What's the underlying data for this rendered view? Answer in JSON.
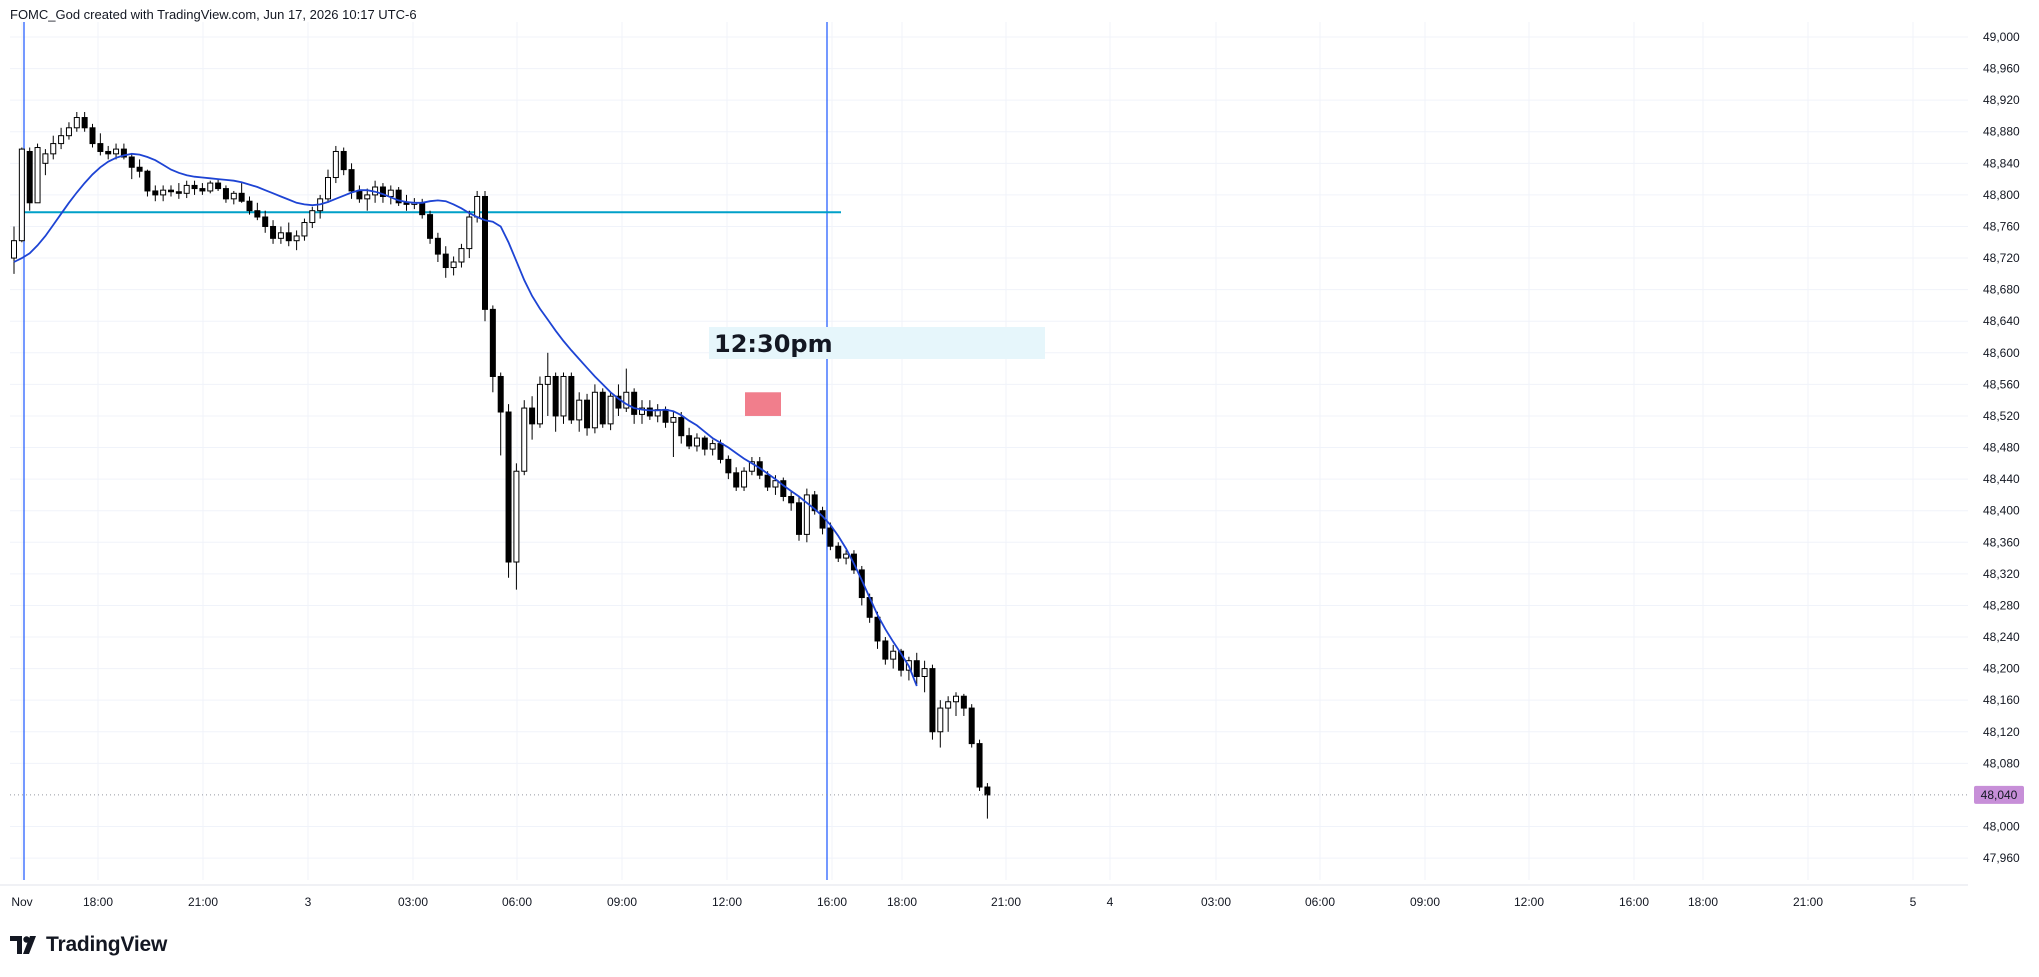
{
  "header": {
    "caption": "FOMC_God created with TradingView.com, Jun 17, 2026 10:17 UTC-6"
  },
  "brand": {
    "name": "TradingView",
    "logo_icon": "tradingview-logo-icon"
  },
  "colors": {
    "up_candle_fill": "#ffffff",
    "down_candle_fill": "#000000",
    "candle_outline": "#000000",
    "moving_average": "#1e44d4",
    "horizontal_level": "#00a0c8",
    "vertical_lines": "#2962ff",
    "annotation_box": "#e6f6fb",
    "order_block": "#f07080",
    "last_price_badge": "#c78fd8",
    "grid": "#f0f3fa"
  },
  "chart_data": {
    "type": "candlestick",
    "title": "",
    "xlabel": "",
    "ylabel": "",
    "ylim": [
      47940,
      49010
    ],
    "grid": true,
    "y_ticks": [
      {
        "value": 49000,
        "label": "49,000"
      },
      {
        "value": 48960,
        "label": "48,960"
      },
      {
        "value": 48920,
        "label": "48,920"
      },
      {
        "value": 48880,
        "label": "48,880"
      },
      {
        "value": 48840,
        "label": "48,840"
      },
      {
        "value": 48800,
        "label": "48,800"
      },
      {
        "value": 48760,
        "label": "48,760"
      },
      {
        "value": 48720,
        "label": "48,720"
      },
      {
        "value": 48680,
        "label": "48,680"
      },
      {
        "value": 48640,
        "label": "48,640"
      },
      {
        "value": 48600,
        "label": "48,600"
      },
      {
        "value": 48560,
        "label": "48,560"
      },
      {
        "value": 48520,
        "label": "48,520"
      },
      {
        "value": 48480,
        "label": "48,480"
      },
      {
        "value": 48440,
        "label": "48,440"
      },
      {
        "value": 48400,
        "label": "48,400"
      },
      {
        "value": 48360,
        "label": "48,360"
      },
      {
        "value": 48320,
        "label": "48,320"
      },
      {
        "value": 48280,
        "label": "48,280"
      },
      {
        "value": 48240,
        "label": "48,240"
      },
      {
        "value": 48200,
        "label": "48,200"
      },
      {
        "value": 48160,
        "label": "48,160"
      },
      {
        "value": 48120,
        "label": "48,120"
      },
      {
        "value": 48080,
        "label": "48,080"
      },
      {
        "value": 48000,
        "label": "48,000"
      },
      {
        "value": 47960,
        "label": "47,960"
      }
    ],
    "x_tick_labels": [
      "Nov",
      "18:00",
      "21:00",
      "3",
      "03:00",
      "06:00",
      "09:00",
      "12:00",
      "16:00",
      "18:00",
      "21:00",
      "4",
      "03:00",
      "06:00",
      "09:00",
      "12:00",
      "16:00",
      "18:00",
      "21:00",
      "5"
    ],
    "last_price": {
      "value": 48040,
      "label": "48,040"
    },
    "annotations": [
      {
        "type": "text_box",
        "text": "12:30pm"
      },
      {
        "type": "horizontal_level",
        "value": 48778
      },
      {
        "type": "vertical_line",
        "at": "Nov"
      },
      {
        "type": "vertical_line",
        "at": "16:00 (Nov 3)"
      },
      {
        "type": "order_block",
        "y_range": [
          48520,
          48550
        ]
      }
    ],
    "moving_average": [
      48715,
      48720,
      48726,
      48736,
      48748,
      48762,
      48776,
      48790,
      48803,
      48815,
      48826,
      48835,
      48842,
      48847,
      48850,
      48852,
      48851,
      48848,
      48844,
      48838,
      48832,
      48828,
      48825,
      48823,
      48822,
      48821,
      48820,
      48819,
      48818,
      48816,
      48813,
      48810,
      48806,
      48802,
      48798,
      48794,
      48790,
      48788,
      48787,
      48788,
      48791,
      48795,
      48799,
      48803,
      48806,
      48806,
      48804,
      48801,
      48797,
      48793,
      48791,
      48790,
      48790,
      48792,
      48793,
      48792,
      48788,
      48783,
      48777,
      48772,
      48768,
      48766,
      48760,
      48740,
      48716,
      48692,
      48672,
      48656,
      48642,
      48628,
      48615,
      48603,
      48592,
      48581,
      48570,
      48560,
      48550,
      48542,
      48535,
      48530,
      48528,
      48527,
      48527,
      48528,
      48526,
      48521,
      48514,
      48508,
      48500,
      48492,
      48486,
      48480,
      48473,
      48466,
      48460,
      48454,
      48447,
      48440,
      48432,
      48425,
      48418,
      48410,
      48402,
      48393,
      48382,
      48368,
      48352,
      48333,
      48312,
      48290,
      48268,
      48250,
      48234,
      48219,
      48203,
      48178
    ],
    "candles": [
      [
        48720,
        48760,
        48700,
        48742
      ],
      [
        48742,
        48860,
        48740,
        48858
      ],
      [
        48855,
        48860,
        48780,
        48790
      ],
      [
        48790,
        48865,
        48790,
        48860
      ],
      [
        48840,
        48858,
        48825,
        48852
      ],
      [
        48852,
        48875,
        48845,
        48865
      ],
      [
        48865,
        48885,
        48858,
        48875
      ],
      [
        48875,
        48892,
        48870,
        48885
      ],
      [
        48885,
        48905,
        48880,
        48898
      ],
      [
        48898,
        48905,
        48880,
        48885
      ],
      [
        48885,
        48890,
        48860,
        48865
      ],
      [
        48865,
        48878,
        48850,
        48855
      ],
      [
        48855,
        48862,
        48845,
        48852
      ],
      [
        48852,
        48865,
        48845,
        48858
      ],
      [
        48858,
        48865,
        48845,
        48848
      ],
      [
        48848,
        48852,
        48820,
        48835
      ],
      [
        48835,
        48845,
        48822,
        48830
      ],
      [
        48830,
        48832,
        48798,
        48805
      ],
      [
        48805,
        48812,
        48792,
        48800
      ],
      [
        48800,
        48812,
        48792,
        48806
      ],
      [
        48806,
        48812,
        48798,
        48804
      ],
      [
        48804,
        48815,
        48795,
        48802
      ],
      [
        48802,
        48818,
        48796,
        48812
      ],
      [
        48812,
        48818,
        48800,
        48808
      ],
      [
        48808,
        48815,
        48800,
        48805
      ],
      [
        48805,
        48818,
        48802,
        48815
      ],
      [
        48815,
        48820,
        48805,
        48808
      ],
      [
        48808,
        48812,
        48790,
        48795
      ],
      [
        48795,
        48805,
        48788,
        48802
      ],
      [
        48802,
        48815,
        48790,
        48792
      ],
      [
        48792,
        48798,
        48775,
        48780
      ],
      [
        48780,
        48790,
        48768,
        48772
      ],
      [
        48772,
        48780,
        48752,
        48760
      ],
      [
        48760,
        48768,
        48738,
        48745
      ],
      [
        48745,
        48760,
        48738,
        48752
      ],
      [
        48752,
        48765,
        48735,
        48742
      ],
      [
        48742,
        48755,
        48730,
        48748
      ],
      [
        48748,
        48770,
        48742,
        48765
      ],
      [
        48765,
        48785,
        48758,
        48780
      ],
      [
        48780,
        48800,
        48770,
        48795
      ],
      [
        48795,
        48832,
        48790,
        48822
      ],
      [
        48822,
        48862,
        48815,
        48855
      ],
      [
        48855,
        48860,
        48825,
        48832
      ],
      [
        48832,
        48840,
        48795,
        48805
      ],
      [
        48805,
        48812,
        48790,
        48795
      ],
      [
        48795,
        48808,
        48780,
        48800
      ],
      [
        48800,
        48818,
        48790,
        48810
      ],
      [
        48810,
        48815,
        48790,
        48798
      ],
      [
        48798,
        48812,
        48788,
        48806
      ],
      [
        48806,
        48810,
        48786,
        48790
      ],
      [
        48790,
        48800,
        48780,
        48788
      ],
      [
        48788,
        48796,
        48782,
        48790
      ],
      [
        48790,
        48795,
        48770,
        48775
      ],
      [
        48775,
        48780,
        48738,
        48745
      ],
      [
        48745,
        48752,
        48715,
        48725
      ],
      [
        48725,
        48735,
        48695,
        48708
      ],
      [
        48708,
        48722,
        48698,
        48715
      ],
      [
        48715,
        48738,
        48708,
        48732
      ],
      [
        48732,
        48780,
        48720,
        48772
      ],
      [
        48772,
        48805,
        48765,
        48798
      ],
      [
        48798,
        48805,
        48640,
        48655
      ],
      [
        48655,
        48660,
        48550,
        48570
      ],
      [
        48570,
        48575,
        48470,
        48525
      ],
      [
        48525,
        48535,
        48315,
        48335
      ],
      [
        48335,
        48460,
        48300,
        48450
      ],
      [
        48450,
        48540,
        48445,
        48530
      ],
      [
        48530,
        48545,
        48490,
        48510
      ],
      [
        48510,
        48570,
        48505,
        48560
      ],
      [
        48560,
        48600,
        48520,
        48570
      ],
      [
        48570,
        48575,
        48500,
        48520
      ],
      [
        48520,
        48575,
        48510,
        48570
      ],
      [
        48570,
        48575,
        48510,
        48515
      ],
      [
        48515,
        48550,
        48500,
        48540
      ],
      [
        48540,
        48548,
        48495,
        48505
      ],
      [
        48505,
        48560,
        48498,
        48550
      ],
      [
        48550,
        48555,
        48505,
        48510
      ],
      [
        48510,
        48550,
        48502,
        48545
      ],
      [
        48545,
        48560,
        48520,
        48530
      ],
      [
        48530,
        48580,
        48525,
        48550
      ],
      [
        48550,
        48555,
        48510,
        48522
      ],
      [
        48522,
        48540,
        48510,
        48530
      ],
      [
        48530,
        48540,
        48515,
        48520
      ],
      [
        48520,
        48535,
        48512,
        48528
      ],
      [
        48528,
        48532,
        48505,
        48512
      ],
      [
        48512,
        48525,
        48468,
        48518
      ],
      [
        48518,
        48525,
        48485,
        48495
      ],
      [
        48495,
        48505,
        48478,
        48482
      ],
      [
        48482,
        48498,
        48475,
        48492
      ],
      [
        48492,
        48495,
        48470,
        48478
      ],
      [
        48478,
        48490,
        48470,
        48485
      ],
      [
        48485,
        48490,
        48460,
        48465
      ],
      [
        48465,
        48470,
        48440,
        48448
      ],
      [
        48448,
        48455,
        48425,
        48430
      ],
      [
        48430,
        48455,
        48425,
        48450
      ],
      [
        48450,
        48468,
        48445,
        48462
      ],
      [
        48462,
        48468,
        48440,
        48445
      ],
      [
        48445,
        48450,
        48425,
        48430
      ],
      [
        48430,
        48445,
        48420,
        48438
      ],
      [
        48438,
        48442,
        48412,
        48418
      ],
      [
        48418,
        48425,
        48400,
        48410
      ],
      [
        48410,
        48418,
        48362,
        48370
      ],
      [
        48370,
        48428,
        48360,
        48420
      ],
      [
        48420,
        48425,
        48395,
        48400
      ],
      [
        48400,
        48405,
        48370,
        48378
      ],
      [
        48378,
        48385,
        48350,
        48355
      ],
      [
        48355,
        48360,
        48335,
        48340
      ],
      [
        48340,
        48350,
        48332,
        48345
      ],
      [
        48345,
        48350,
        48320,
        48325
      ],
      [
        48325,
        48330,
        48280,
        48290
      ],
      [
        48290,
        48295,
        48258,
        48265
      ],
      [
        48265,
        48272,
        48225,
        48235
      ],
      [
        48235,
        48240,
        48205,
        48212
      ],
      [
        48212,
        48230,
        48200,
        48222
      ],
      [
        48222,
        48225,
        48190,
        48198
      ],
      [
        48198,
        48215,
        48185,
        48210
      ],
      [
        48210,
        48220,
        48180,
        48190
      ],
      [
        48190,
        48210,
        48170,
        48200
      ],
      [
        48200,
        48205,
        48110,
        48120
      ],
      [
        48120,
        48160,
        48100,
        48150
      ],
      [
        48150,
        48165,
        48120,
        48158
      ],
      [
        48158,
        48170,
        48140,
        48165
      ],
      [
        48165,
        48168,
        48140,
        48150
      ],
      [
        48150,
        48155,
        48100,
        48105
      ],
      [
        48105,
        48110,
        48045,
        48050
      ],
      [
        48050,
        48055,
        48010,
        48040
      ]
    ]
  }
}
